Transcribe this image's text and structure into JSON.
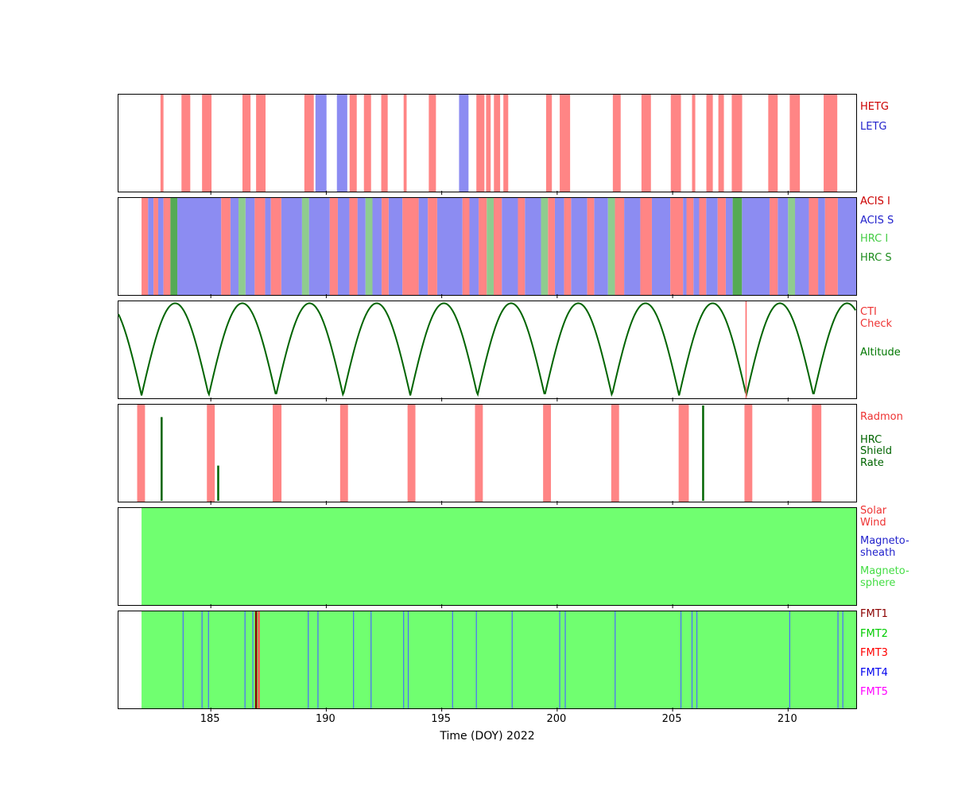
{
  "chart_data": {
    "type": "timeline",
    "title": "",
    "xlabel": "Time (DOY) 2022",
    "x_range": [
      181.0,
      212.95
    ],
    "x_ticks": [
      185,
      190,
      195,
      200,
      205,
      210
    ],
    "panels": [
      {
        "name": "gratings",
        "legend": [
          {
            "label": "HETG",
            "color": "#cc0000"
          },
          {
            "label": "LETG",
            "color": "#2222cc"
          }
        ],
        "series": [
          {
            "name": "HETG",
            "type": "interval",
            "color": "#ff8585",
            "intervals": [
              [
                182.82,
                182.95
              ],
              [
                183.73,
                184.11
              ],
              [
                184.62,
                185.03
              ],
              [
                186.37,
                186.72
              ],
              [
                186.96,
                187.37
              ],
              [
                189.05,
                189.46
              ],
              [
                191.01,
                191.32
              ],
              [
                191.63,
                191.94
              ],
              [
                192.38,
                192.66
              ],
              [
                193.35,
                193.48
              ],
              [
                194.44,
                194.75
              ],
              [
                196.5,
                196.85
              ],
              [
                196.92,
                197.12
              ],
              [
                197.26,
                197.53
              ],
              [
                197.67,
                197.88
              ],
              [
                199.52,
                199.77
              ],
              [
                200.11,
                200.56
              ],
              [
                202.41,
                202.75
              ],
              [
                203.65,
                204.06
              ],
              [
                204.92,
                205.36
              ],
              [
                205.84,
                205.98
              ],
              [
                206.46,
                206.74
              ],
              [
                206.98,
                207.22
              ],
              [
                207.56,
                208.01
              ],
              [
                209.14,
                209.55
              ],
              [
                210.07,
                210.51
              ],
              [
                211.54,
                212.13
              ]
            ]
          },
          {
            "name": "LETG",
            "type": "interval",
            "color": "#8c8cf2",
            "intervals": [
              [
                189.53,
                190.01
              ],
              [
                190.46,
                190.91
              ],
              [
                195.75,
                196.16
              ]
            ]
          }
        ]
      },
      {
        "name": "instruments",
        "legend": [
          {
            "label": "ACIS I",
            "color": "#cc0000"
          },
          {
            "label": "ACIS S",
            "color": "#2222cc"
          },
          {
            "label": "HRC I",
            "color": "#44cc44"
          },
          {
            "label": "HRC S",
            "color": "#1e8c1e"
          }
        ],
        "series": [
          {
            "name": "ACIS S",
            "type": "interval",
            "color": "#8c8cf2",
            "intervals": [
              [
                182.28,
                182.52
              ],
              [
                182.72,
                182.95
              ],
              [
                183.55,
                185.45
              ],
              [
                185.85,
                186.2
              ],
              [
                186.5,
                186.9
              ],
              [
                187.35,
                187.6
              ],
              [
                188.05,
                188.95
              ],
              [
                189.25,
                190.15
              ],
              [
                190.5,
                191.0
              ],
              [
                191.35,
                191.7
              ],
              [
                192.0,
                192.4
              ],
              [
                192.7,
                193.3
              ],
              [
                194.0,
                194.4
              ],
              [
                194.8,
                195.9
              ],
              [
                196.2,
                196.6
              ],
              [
                197.6,
                198.3
              ],
              [
                198.6,
                199.3
              ],
              [
                199.9,
                200.3
              ],
              [
                200.6,
                201.3
              ],
              [
                201.6,
                202.2
              ],
              [
                202.9,
                203.6
              ],
              [
                204.1,
                204.9
              ],
              [
                205.45,
                205.6
              ],
              [
                205.9,
                206.15
              ],
              [
                206.45,
                206.95
              ],
              [
                207.3,
                207.6
              ],
              [
                208.0,
                209.2
              ],
              [
                209.55,
                210.0
              ],
              [
                210.3,
                210.9
              ],
              [
                211.3,
                211.6
              ],
              [
                212.15,
                212.95
              ]
            ]
          },
          {
            "name": "ACIS I",
            "type": "interval",
            "color": "#ff8585",
            "intervals": [
              [
                182.0,
                182.28
              ],
              [
                182.52,
                182.72
              ],
              [
                182.95,
                183.25
              ],
              [
                185.45,
                185.85
              ],
              [
                186.9,
                187.35
              ],
              [
                187.6,
                188.05
              ],
              [
                190.15,
                190.5
              ],
              [
                191.0,
                191.35
              ],
              [
                192.4,
                192.7
              ],
              [
                193.3,
                194.0
              ],
              [
                194.4,
                194.8
              ],
              [
                195.9,
                196.2
              ],
              [
                196.6,
                196.95
              ],
              [
                197.25,
                197.6
              ],
              [
                198.3,
                198.6
              ],
              [
                199.6,
                199.9
              ],
              [
                200.3,
                200.6
              ],
              [
                201.3,
                201.6
              ],
              [
                202.5,
                202.9
              ],
              [
                203.6,
                204.1
              ],
              [
                204.9,
                205.45
              ],
              [
                205.6,
                205.9
              ],
              [
                206.15,
                206.45
              ],
              [
                206.95,
                207.3
              ],
              [
                209.2,
                209.55
              ],
              [
                210.9,
                211.3
              ],
              [
                211.6,
                212.15
              ]
            ]
          },
          {
            "name": "HRC I",
            "type": "interval",
            "color": "#8fcc8f",
            "intervals": [
              [
                186.2,
                186.5
              ],
              [
                188.95,
                189.25
              ],
              [
                191.7,
                192.0
              ],
              [
                196.95,
                197.25
              ],
              [
                199.3,
                199.6
              ],
              [
                202.2,
                202.5
              ],
              [
                210.0,
                210.3
              ]
            ]
          },
          {
            "name": "HRC S",
            "type": "interval",
            "color": "#55aa55",
            "intervals": [
              [
                183.25,
                183.55
              ],
              [
                207.6,
                208.0
              ]
            ]
          }
        ]
      },
      {
        "name": "orbit",
        "legend": [
          {
            "label": "CTI\nCheck",
            "color": "#ee3333"
          },
          {
            "label": "Altitude",
            "color": "#007700"
          }
        ],
        "series": [
          {
            "name": "Altitude",
            "type": "arch",
            "color": "#006400",
            "t0": 182.0,
            "period": 2.91,
            "line_width": 2
          },
          {
            "name": "CTI Check",
            "type": "vline",
            "color": "#ff6666",
            "width": 1.5,
            "x": [
              208.18
            ]
          }
        ]
      },
      {
        "name": "radiation",
        "legend": [
          {
            "label": "Radmon",
            "color": "#ee3333"
          },
          {
            "label": "HRC\nShield\nRate",
            "color": "#006400"
          }
        ],
        "series": [
          {
            "name": "Radmon",
            "type": "interval",
            "color": "#ff8585",
            "intervals": [
              [
                181.81,
                182.15
              ],
              [
                184.83,
                185.17
              ],
              [
                187.68,
                188.06
              ],
              [
                190.6,
                190.94
              ],
              [
                193.52,
                193.86
              ],
              [
                196.44,
                196.78
              ],
              [
                199.39,
                199.73
              ],
              [
                202.34,
                202.68
              ],
              [
                205.26,
                205.7
              ],
              [
                208.11,
                208.45
              ],
              [
                211.03,
                211.44
              ]
            ]
          },
          {
            "name": "HRC Shield Rate",
            "type": "spike",
            "color": "#006400",
            "width": 2.5,
            "points": [
              [
                182.87,
                0.88
              ],
              [
                185.32,
                0.38
              ],
              [
                206.32,
                1.0
              ]
            ]
          }
        ]
      },
      {
        "name": "region",
        "legend": [
          {
            "label": "Solar\nWind",
            "color": "#ee3333"
          },
          {
            "label": "Magneto-\nsheath",
            "color": "#2222cc"
          },
          {
            "label": "Magneto-\nsphere",
            "color": "#44dd44"
          }
        ],
        "series": [
          {
            "name": "Magneto-sphere",
            "type": "interval",
            "color": "#70ff70",
            "intervals": [
              [
                182.0,
                212.95
              ]
            ]
          }
        ]
      },
      {
        "name": "telemetry",
        "legend": [
          {
            "label": "FMT1",
            "color": "#8b0000"
          },
          {
            "label": "FMT2",
            "color": "#00cc00"
          },
          {
            "label": "FMT3",
            "color": "#ff0000"
          },
          {
            "label": "FMT4",
            "color": "#0000ee"
          },
          {
            "label": "FMT5",
            "color": "#ff00ff"
          }
        ],
        "series": [
          {
            "name": "FMT2",
            "type": "interval",
            "color": "#70ff70",
            "intervals": [
              [
                182.0,
                212.95
              ]
            ]
          },
          {
            "name": "FMT4",
            "type": "vline",
            "color": "#4b6bff",
            "width": 1.2,
            "x": [
              183.8,
              184.62,
              184.9,
              186.48,
              186.82,
              189.22,
              189.64,
              191.18,
              191.94,
              193.35,
              193.55,
              195.47,
              196.5,
              198.05,
              200.11,
              200.35,
              202.51,
              205.36,
              205.84,
              206.05,
              210.07,
              212.16,
              212.37
            ]
          },
          {
            "name": "FMT1",
            "type": "vline",
            "color": "#8b0000",
            "width": 2.5,
            "x": [
              186.96
            ]
          },
          {
            "name": "FMT3",
            "type": "vline",
            "color": "#ff5555",
            "width": 2.5,
            "x": [
              187.08
            ]
          }
        ]
      }
    ]
  }
}
